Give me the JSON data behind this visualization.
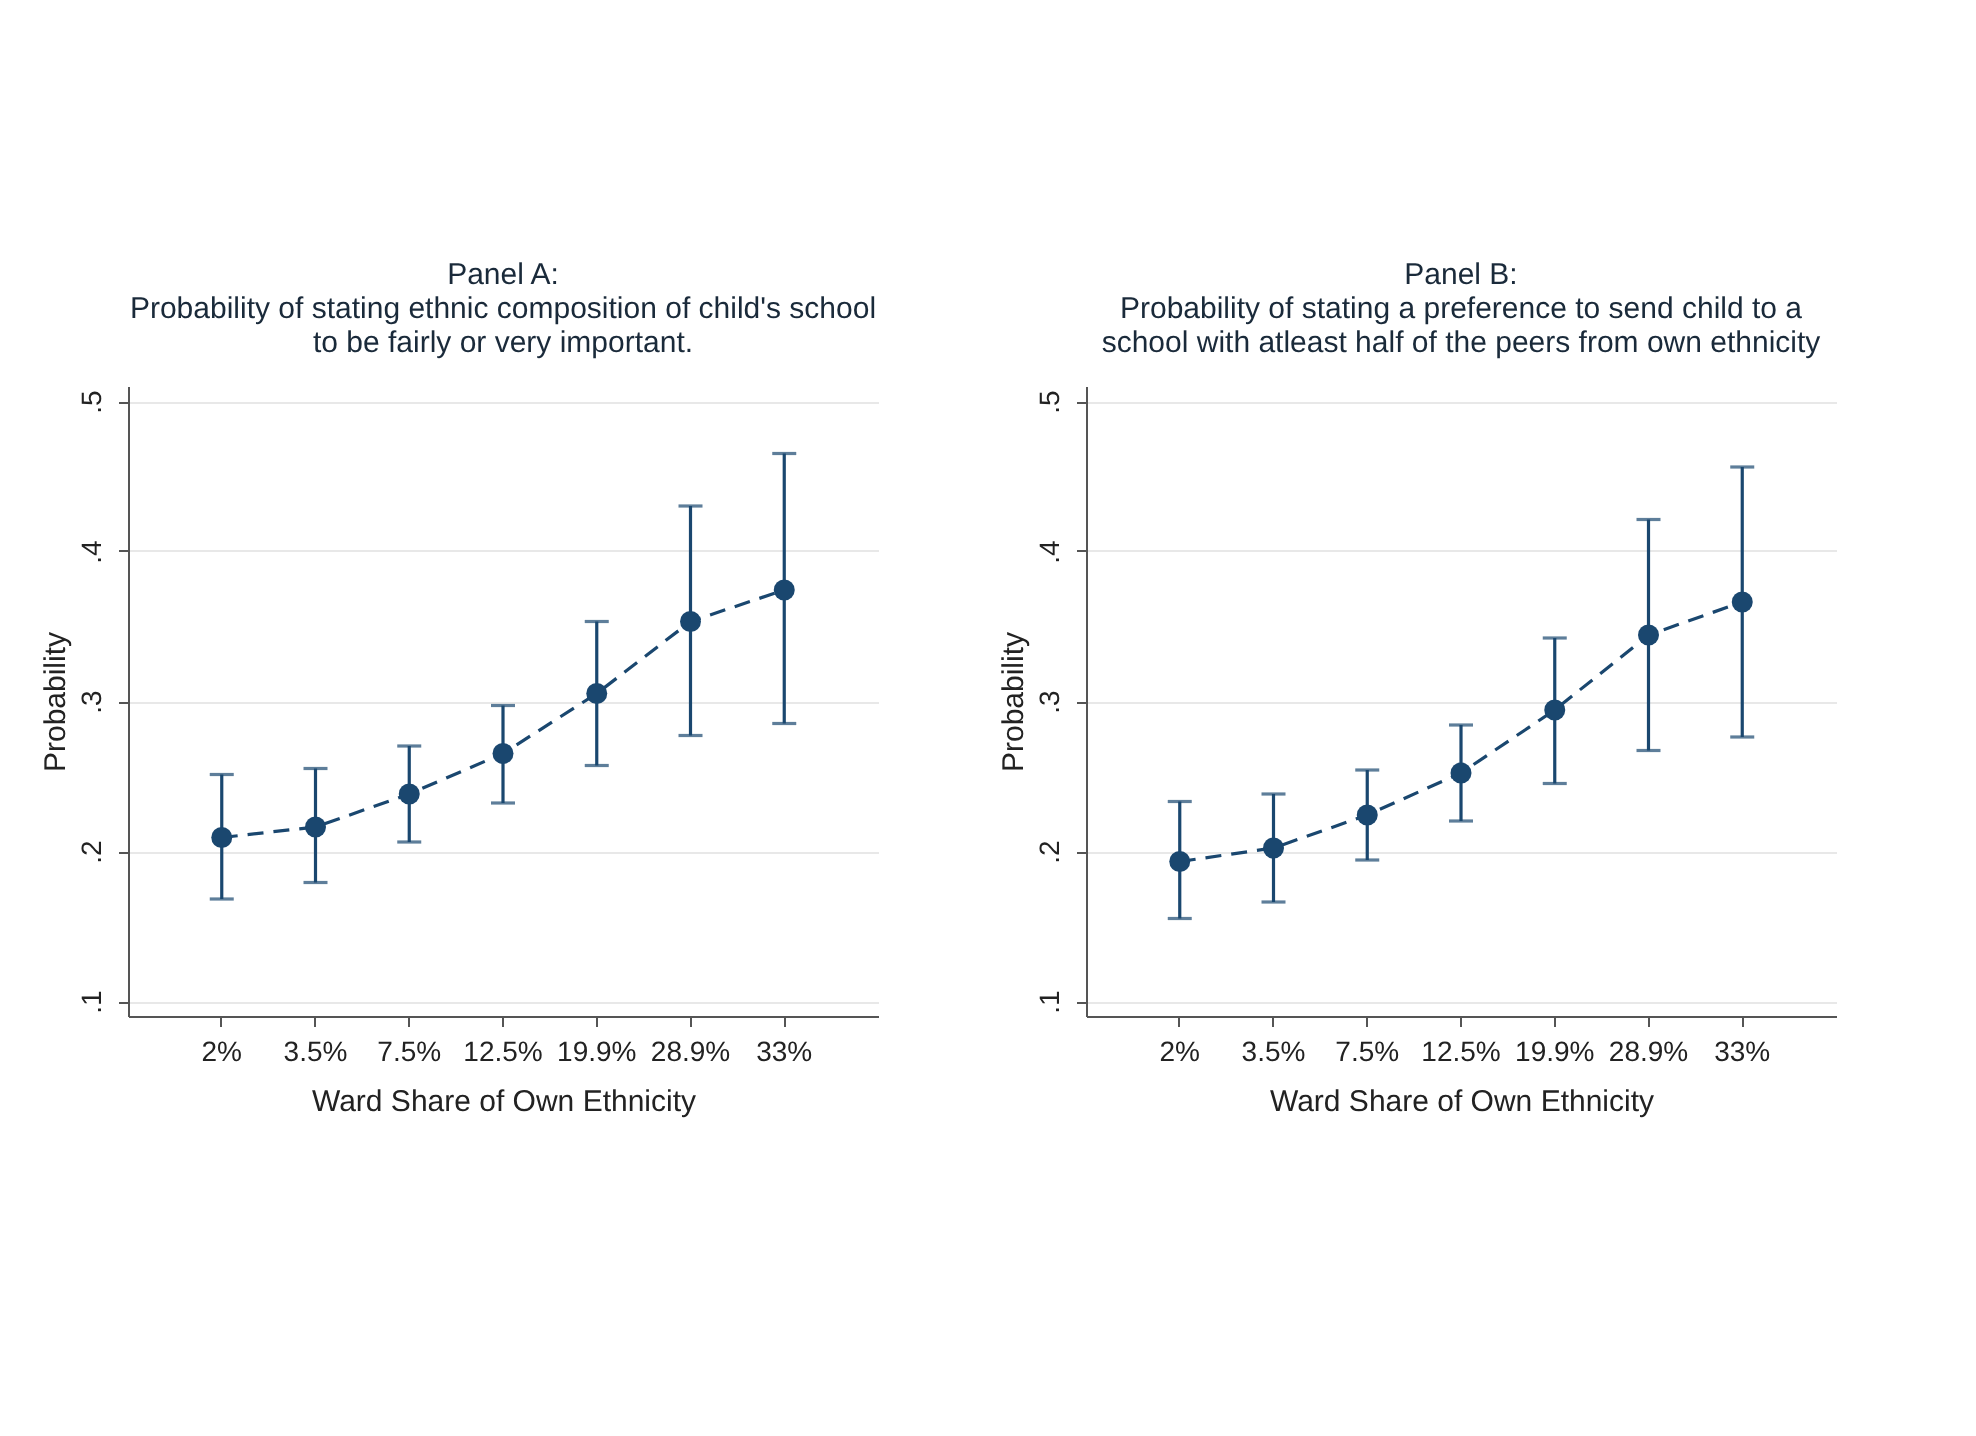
{
  "chart_data": [
    {
      "type": "line",
      "title": "Panel A:\nProbability of stating ethnic composition of child's school\nto be fairly or very important.",
      "xlabel": "Ward Share of Own Ethnicity",
      "ylabel": "Probability",
      "categories": [
        "2%",
        "3.5%",
        "7.5%",
        "12.5%",
        "19.9%",
        "28.9%",
        "33%"
      ],
      "series": [
        {
          "color": "#1a476f",
          "values": [
            0.209,
            0.216,
            0.238,
            0.265,
            0.305,
            0.353,
            0.374
          ],
          "errors": [
            [
              0.168,
              0.251
            ],
            [
              0.179,
              0.255
            ],
            [
              0.206,
              0.27
            ],
            [
              0.232,
              0.297
            ],
            [
              0.257,
              0.353
            ],
            [
              0.277,
              0.43
            ],
            [
              0.285,
              0.465
            ]
          ]
        }
      ],
      "ylim": [
        0.09,
        0.51
      ],
      "yticks": [
        {
          "value": 0.1,
          "label": ".1"
        },
        {
          "value": 0.2,
          "label": ".2"
        },
        {
          "value": 0.3,
          "label": ".3"
        },
        {
          "value": 0.4,
          "label": ".4"
        },
        {
          "value": 0.5,
          "label": ".5"
        }
      ],
      "grid": "y",
      "marker": "circle",
      "line_style": "dashed"
    },
    {
      "type": "line",
      "title": "Panel B:\nProbability of stating a preference to send child to a\nschool with atleast half of the peers from own ethnicity",
      "xlabel": "Ward Share of Own Ethnicity",
      "ylabel": "Probability",
      "categories": [
        "2%",
        "3.5%",
        "7.5%",
        "12.5%",
        "19.9%",
        "28.9%",
        "33%"
      ],
      "series": [
        {
          "color": "#1a476f",
          "values": [
            0.193,
            0.202,
            0.224,
            0.252,
            0.294,
            0.344,
            0.366
          ],
          "errors": [
            [
              0.155,
              0.233
            ],
            [
              0.166,
              0.238
            ],
            [
              0.194,
              0.254
            ],
            [
              0.22,
              0.284
            ],
            [
              0.245,
              0.342
            ],
            [
              0.267,
              0.421
            ],
            [
              0.276,
              0.456
            ]
          ]
        }
      ],
      "ylim": [
        0.09,
        0.51
      ],
      "yticks": [
        {
          "value": 0.1,
          "label": ".1"
        },
        {
          "value": 0.2,
          "label": ".2"
        },
        {
          "value": 0.3,
          "label": ".3"
        },
        {
          "value": 0.4,
          "label": ".4"
        },
        {
          "value": 0.5,
          "label": ".5"
        }
      ],
      "grid": "y",
      "marker": "circle",
      "line_style": "dashed"
    }
  ]
}
